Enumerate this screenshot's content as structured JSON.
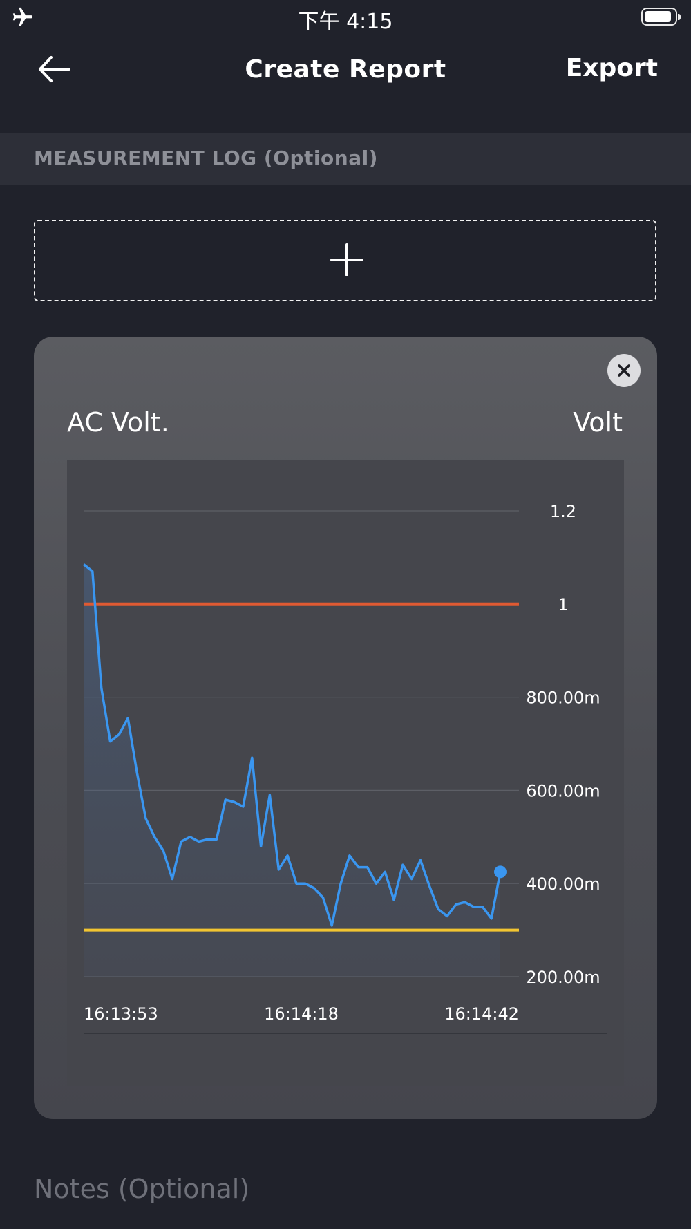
{
  "status_bar": {
    "time": "下午 4:15"
  },
  "nav": {
    "title": "Create Report",
    "export_label": "Export"
  },
  "section": {
    "measurement_log_label": "MEASUREMENT LOG (Optional)"
  },
  "card": {
    "title": "AC Volt.",
    "unit": "Volt"
  },
  "notes": {
    "label": "Notes (Optional)"
  },
  "colors": {
    "line": "#3a96f0",
    "upper_limit": "#e05a32",
    "lower_limit": "#f2c531"
  },
  "chart_data": {
    "type": "line",
    "title": "AC Volt.",
    "unit": "Volt",
    "ylim": [
      0.2,
      1.2
    ],
    "y_ticks": [
      {
        "value": 1.2,
        "label": "1.2"
      },
      {
        "value": 1.0,
        "label": "1"
      },
      {
        "value": 0.8,
        "label": "800.00m"
      },
      {
        "value": 0.6,
        "label": "600.00m"
      },
      {
        "value": 0.4,
        "label": "400.00m"
      },
      {
        "value": 0.2,
        "label": "200.00m"
      }
    ],
    "x_ticks": [
      "16:13:53",
      "16:14:18",
      "16:14:42"
    ],
    "reference_lines": [
      {
        "value": 1.0,
        "color": "#e05a32"
      },
      {
        "value": 0.3,
        "color": "#f2c531"
      }
    ],
    "series": [
      {
        "values": [
          1.085,
          1.07,
          0.82,
          0.705,
          0.72,
          0.755,
          0.64,
          0.54,
          0.5,
          0.47,
          0.41,
          0.49,
          0.5,
          0.49,
          0.495,
          0.495,
          0.58,
          0.575,
          0.565,
          0.67,
          0.48,
          0.59,
          0.43,
          0.46,
          0.4,
          0.4,
          0.39,
          0.37,
          0.31,
          0.4,
          0.46,
          0.435,
          0.435,
          0.4,
          0.425,
          0.365,
          0.44,
          0.41,
          0.45,
          0.395,
          0.345,
          0.33,
          0.355,
          0.36,
          0.35,
          0.35,
          0.325,
          0.425
        ]
      }
    ],
    "grid": true
  }
}
